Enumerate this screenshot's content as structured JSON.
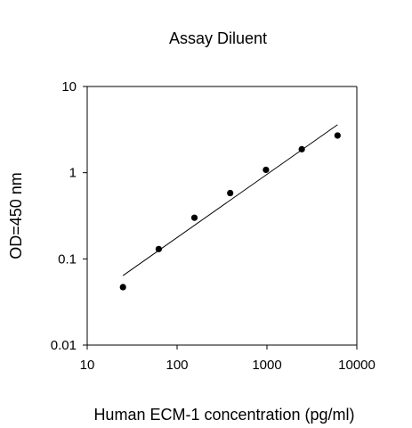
{
  "chart_data": {
    "type": "scatter",
    "title": "Assay Diluent",
    "xlabel": "Human ECM-1 concentration (pg/ml)",
    "ylabel": "OD=450 nm",
    "xscale": "log",
    "yscale": "log",
    "xlim": [
      10,
      10000
    ],
    "ylim": [
      0.01,
      10
    ],
    "xticks": [
      "10",
      "100",
      "1000",
      "10000"
    ],
    "yticks": [
      "0.01",
      "0.1",
      "1",
      "10"
    ],
    "grid": false,
    "legend": "none",
    "series": [
      {
        "type": "scatter",
        "x": [
          25,
          62.5,
          156,
          390,
          975,
          2440,
          6100
        ],
        "y": [
          0.047,
          0.13,
          0.3,
          0.58,
          1.08,
          1.87,
          2.7
        ]
      },
      {
        "type": "line",
        "x": [
          25,
          6100
        ],
        "y": [
          0.064,
          3.6
        ]
      }
    ],
    "colors": {
      "points": "#000000",
      "line": "#000000",
      "axes": "#000000"
    }
  }
}
